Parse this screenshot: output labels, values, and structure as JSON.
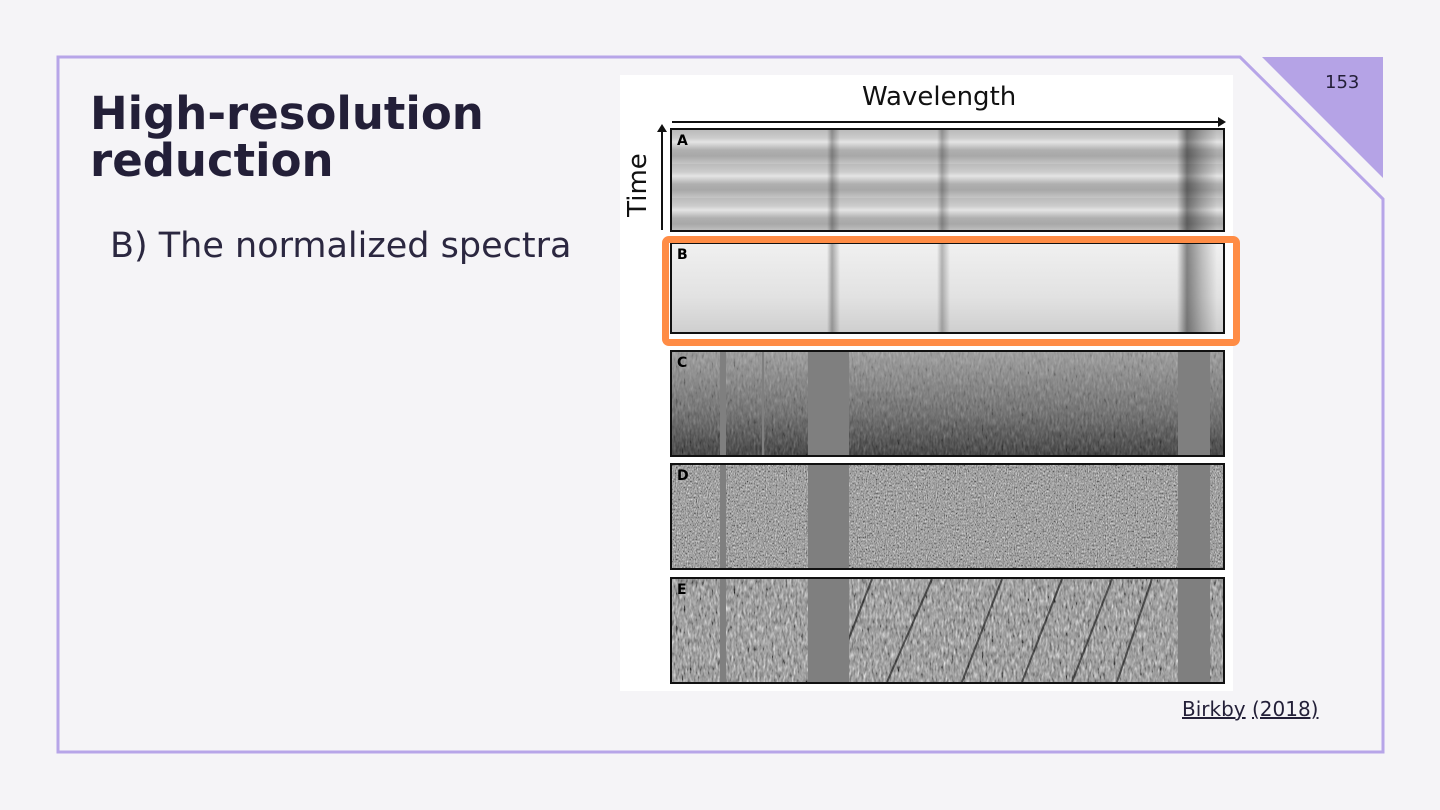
{
  "slide": {
    "title": "High-resolution reduction",
    "bullet": "B) The normalized spectra",
    "page_number": "153",
    "citation": {
      "author": "Birkby",
      "year": "(2018)"
    },
    "accent_color": "#b7a5e8",
    "highlight_color": "#ff8c45"
  },
  "figure": {
    "x_label": "Wavelength",
    "y_label": "Time",
    "panels": [
      "A",
      "B",
      "C",
      "D",
      "E"
    ],
    "highlighted_panel": "B"
  }
}
